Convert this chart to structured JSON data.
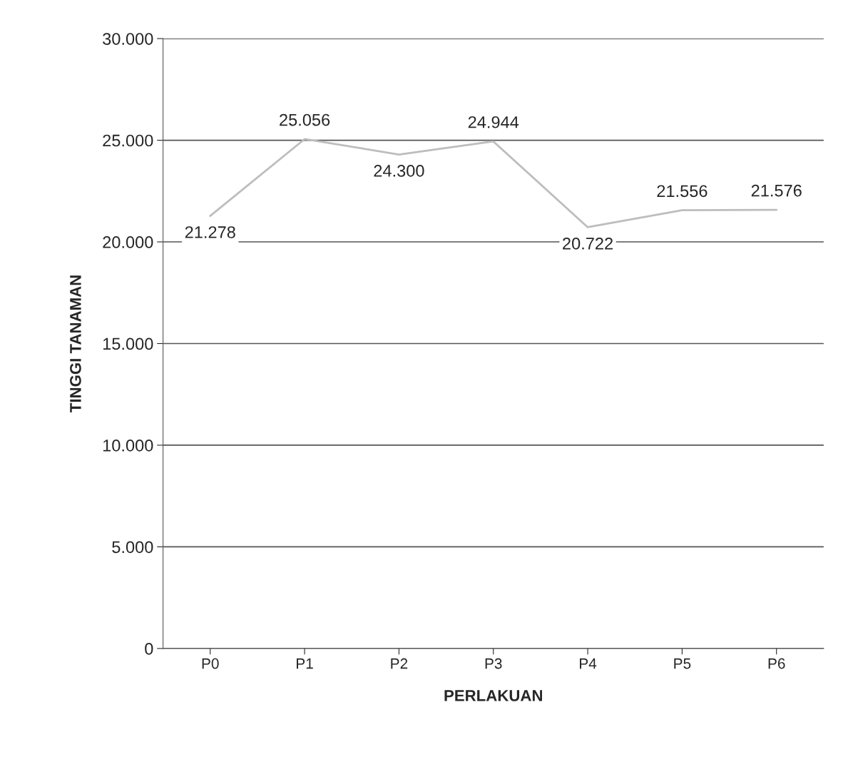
{
  "chart_data": {
    "type": "line",
    "xlabel": "PERLAKUAN",
    "ylabel": "TINGGI TANAMAN",
    "categories": [
      "P0",
      "P1",
      "P2",
      "P3",
      "P4",
      "P5",
      "P6"
    ],
    "values": [
      21278,
      25056,
      24300,
      24944,
      20722,
      21556,
      21576
    ],
    "value_labels": [
      "21.278",
      "25.056",
      "24.300",
      "24.944",
      "20.722",
      "21.556",
      "21.576"
    ],
    "color": "#bdbdbd",
    "ylim": [
      0,
      30000
    ],
    "yticks": [
      0,
      {
        "value": 5000,
        "label": "5.000"
      },
      {
        "value": 10000,
        "label": "10.000"
      },
      {
        "value": 15000,
        "label": "15.000"
      },
      {
        "value": 20000,
        "label": "20.000"
      },
      {
        "value": 25000,
        "label": "25.000"
      },
      {
        "value": 30000,
        "label": "30.000"
      }
    ],
    "grid": "y",
    "legend": false,
    "line_style": "solid"
  }
}
